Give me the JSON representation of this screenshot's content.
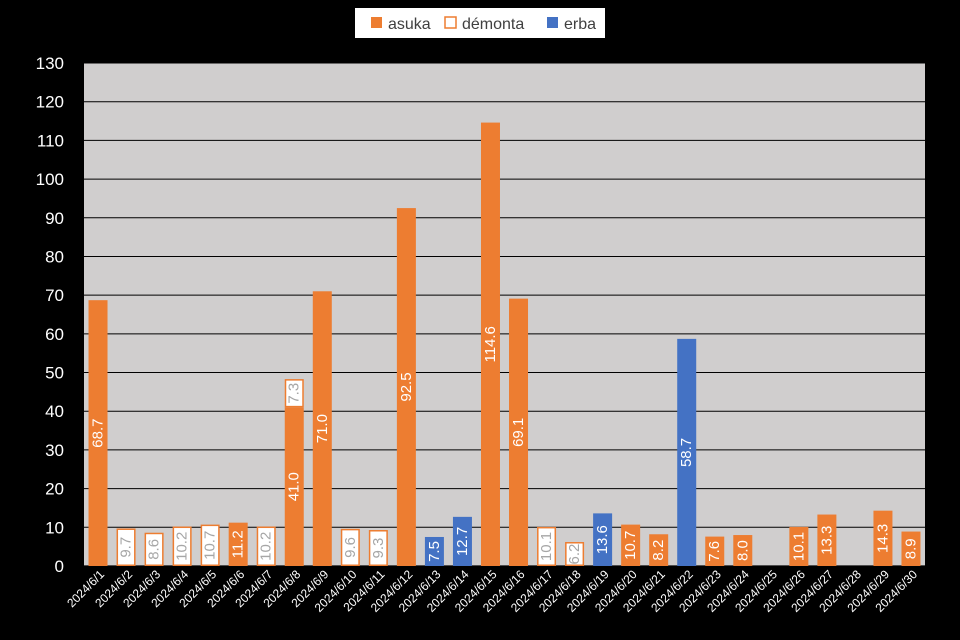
{
  "chart_data": {
    "type": "bar",
    "stacked": true,
    "grid": true,
    "legend_position": "top",
    "ylim": [
      0,
      130
    ],
    "y_ticks": [
      "0",
      "10",
      "20",
      "30",
      "40",
      "50",
      "60",
      "70",
      "80",
      "90",
      "100",
      "110",
      "120",
      "130"
    ],
    "categories": [
      "2024/6/1",
      "2024/6/2",
      "2024/6/3",
      "2024/6/4",
      "2024/6/5",
      "2024/6/6",
      "2024/6/7",
      "2024/6/8",
      "2024/6/9",
      "2024/6/10",
      "2024/6/11",
      "2024/6/12",
      "2024/6/13",
      "2024/6/14",
      "2024/6/15",
      "2024/6/16",
      "2024/6/17",
      "2024/6/18",
      "2024/6/19",
      "2024/6/20",
      "2024/6/21",
      "2024/6/22",
      "2024/6/23",
      "2024/6/24",
      "2024/6/25",
      "2024/6/26",
      "2024/6/27",
      "2024/6/28",
      "2024/6/29",
      "2024/6/30"
    ],
    "series": [
      {
        "name": "asuka",
        "color": "#ED7D31",
        "style": "filled",
        "values": [
          68.7,
          null,
          null,
          null,
          null,
          11.2,
          null,
          41.0,
          71.0,
          null,
          null,
          92.5,
          null,
          null,
          114.6,
          69.1,
          null,
          null,
          null,
          10.7,
          8.2,
          null,
          7.6,
          8.0,
          null,
          10.1,
          13.3,
          null,
          14.3,
          8.9
        ]
      },
      {
        "name": "démonta",
        "color": "#ED7D31",
        "style": "outline",
        "values": [
          null,
          9.7,
          8.6,
          10.2,
          10.7,
          null,
          10.2,
          7.3,
          null,
          9.6,
          9.3,
          null,
          null,
          null,
          null,
          null,
          10.1,
          6.2,
          null,
          null,
          null,
          null,
          null,
          null,
          null,
          null,
          null,
          null,
          null,
          null
        ]
      },
      {
        "name": "erba",
        "color": "#4472C4",
        "style": "filled",
        "values": [
          null,
          null,
          null,
          null,
          null,
          null,
          null,
          null,
          null,
          null,
          null,
          null,
          7.5,
          12.7,
          null,
          null,
          null,
          null,
          13.6,
          null,
          null,
          58.7,
          null,
          null,
          null,
          null,
          null,
          null,
          null,
          null
        ]
      }
    ]
  }
}
